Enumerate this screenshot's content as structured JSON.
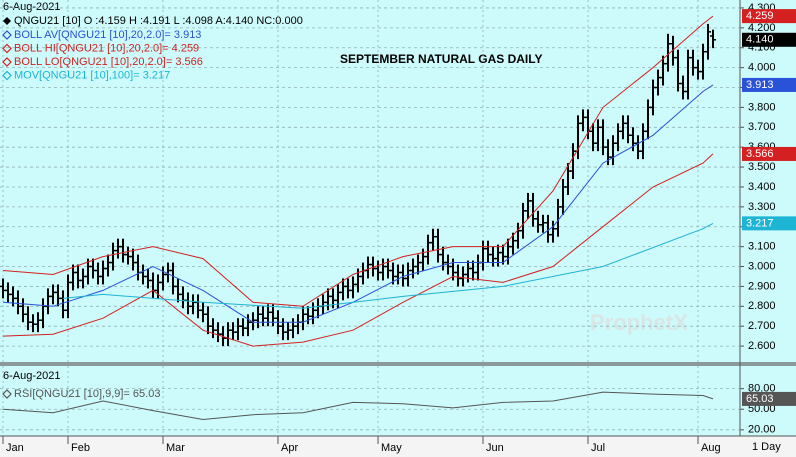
{
  "chart_data": [
    {
      "type": "ohlc",
      "header": "6-Aug-2021",
      "title": "SEPTEMBER NATURAL GAS DAILY",
      "watermark": "ProphetX",
      "interval": "1 Day",
      "ohlc_name": "QNGU21 [10] O :4.159 H :4.191 L :4.098 A:4.140 NC:0.000",
      "ohlc_color": "#000000",
      "ohlc_last_label": "4.140",
      "grid": true,
      "xlim": [
        -0.6,
        147.4
      ],
      "xticks": [
        {
          "value": 0,
          "label": "Jan"
        },
        {
          "value": 13,
          "label": "Feb"
        },
        {
          "value": 32,
          "label": "Mar"
        },
        {
          "value": 55,
          "label": "Apr"
        },
        {
          "value": 75,
          "label": "May"
        },
        {
          "value": 96,
          "label": "Jun"
        },
        {
          "value": 117,
          "label": "Jul"
        },
        {
          "value": 139,
          "label": "Aug"
        }
      ],
      "ylim": [
        2.52,
        4.34
      ],
      "yticks": [
        {
          "value": 2.6,
          "label": "2.600"
        },
        {
          "value": 2.7,
          "label": "2.700"
        },
        {
          "value": 2.8,
          "label": "2.800"
        },
        {
          "value": 2.9,
          "label": "2.900"
        },
        {
          "value": 3.0,
          "label": "3.000"
        },
        {
          "value": 3.1,
          "label": "3.100"
        },
        {
          "value": 3.2,
          "label": "3.200"
        },
        {
          "value": 3.3,
          "label": "3.300"
        },
        {
          "value": 3.4,
          "label": "3.400"
        },
        {
          "value": 3.5,
          "label": "3.500"
        },
        {
          "value": 3.6,
          "label": "3.600"
        },
        {
          "value": 3.7,
          "label": "3.700"
        },
        {
          "value": 3.8,
          "label": "3.800"
        },
        {
          "value": 3.9,
          "label": "3.900"
        },
        {
          "value": 4.0,
          "label": "4.000"
        },
        {
          "value": 4.1,
          "label": "4.100"
        },
        {
          "value": 4.2,
          "label": "4.200"
        },
        {
          "value": 4.3,
          "label": "4.300"
        }
      ],
      "ohlc": [
        [
          2.9,
          2.94,
          2.84,
          2.88
        ],
        [
          2.88,
          2.92,
          2.82,
          2.86
        ],
        [
          2.86,
          2.9,
          2.8,
          2.84
        ],
        [
          2.84,
          2.88,
          2.76,
          2.8
        ],
        [
          2.8,
          2.84,
          2.72,
          2.76
        ],
        [
          2.76,
          2.8,
          2.68,
          2.72
        ],
        [
          2.72,
          2.76,
          2.67,
          2.71
        ],
        [
          2.71,
          2.77,
          2.67,
          2.73
        ],
        [
          2.73,
          2.84,
          2.69,
          2.8
        ],
        [
          2.8,
          2.89,
          2.76,
          2.85
        ],
        [
          2.85,
          2.91,
          2.81,
          2.87
        ],
        [
          2.87,
          2.91,
          2.8,
          2.84
        ],
        [
          2.84,
          2.88,
          2.74,
          2.78
        ],
        [
          2.78,
          2.96,
          2.74,
          2.92
        ],
        [
          2.92,
          3.01,
          2.88,
          2.97
        ],
        [
          2.97,
          3.01,
          2.89,
          2.93
        ],
        [
          2.93,
          2.99,
          2.89,
          2.95
        ],
        [
          2.95,
          3.04,
          2.91,
          3.0
        ],
        [
          3.0,
          3.04,
          2.94,
          2.98
        ],
        [
          2.98,
          3.02,
          2.91,
          2.95
        ],
        [
          2.95,
          3.03,
          2.91,
          2.99
        ],
        [
          2.99,
          3.06,
          2.95,
          3.02
        ],
        [
          3.02,
          3.12,
          2.98,
          3.08
        ],
        [
          3.08,
          3.14,
          3.04,
          3.1
        ],
        [
          3.1,
          3.14,
          3.02,
          3.06
        ],
        [
          3.06,
          3.1,
          3.01,
          3.05
        ],
        [
          3.05,
          3.09,
          2.98,
          3.02
        ],
        [
          3.02,
          3.06,
          2.93,
          2.97
        ],
        [
          2.97,
          3.01,
          2.91,
          2.95
        ],
        [
          2.95,
          2.99,
          2.89,
          2.93
        ],
        [
          2.93,
          2.97,
          2.84,
          2.88
        ],
        [
          2.88,
          2.96,
          2.84,
          2.92
        ],
        [
          2.92,
          3.0,
          2.88,
          2.96
        ],
        [
          2.96,
          3.02,
          2.92,
          2.98
        ],
        [
          2.98,
          3.02,
          2.86,
          2.9
        ],
        [
          2.9,
          2.94,
          2.82,
          2.86
        ],
        [
          2.86,
          2.9,
          2.79,
          2.83
        ],
        [
          2.83,
          2.87,
          2.76,
          2.8
        ],
        [
          2.8,
          2.86,
          2.76,
          2.82
        ],
        [
          2.82,
          2.86,
          2.74,
          2.78
        ],
        [
          2.78,
          2.82,
          2.72,
          2.76
        ],
        [
          2.76,
          2.8,
          2.66,
          2.7
        ],
        [
          2.7,
          2.74,
          2.64,
          2.68
        ],
        [
          2.68,
          2.72,
          2.62,
          2.66
        ],
        [
          2.66,
          2.7,
          2.6,
          2.64
        ],
        [
          2.64,
          2.72,
          2.6,
          2.68
        ],
        [
          2.68,
          2.72,
          2.63,
          2.67
        ],
        [
          2.67,
          2.74,
          2.63,
          2.7
        ],
        [
          2.7,
          2.74,
          2.65,
          2.69
        ],
        [
          2.69,
          2.76,
          2.65,
          2.72
        ],
        [
          2.72,
          2.77,
          2.68,
          2.73
        ],
        [
          2.73,
          2.8,
          2.69,
          2.76
        ],
        [
          2.76,
          2.8,
          2.7,
          2.74
        ],
        [
          2.74,
          2.81,
          2.7,
          2.77
        ],
        [
          2.77,
          2.81,
          2.7,
          2.74
        ],
        [
          2.74,
          2.78,
          2.66,
          2.7
        ],
        [
          2.7,
          2.74,
          2.63,
          2.67
        ],
        [
          2.67,
          2.72,
          2.63,
          2.68
        ],
        [
          2.68,
          2.74,
          2.64,
          2.7
        ],
        [
          2.7,
          2.76,
          2.66,
          2.72
        ],
        [
          2.72,
          2.8,
          2.68,
          2.76
        ],
        [
          2.76,
          2.8,
          2.71,
          2.75
        ],
        [
          2.75,
          2.82,
          2.71,
          2.78
        ],
        [
          2.78,
          2.84,
          2.74,
          2.8
        ],
        [
          2.8,
          2.86,
          2.76,
          2.82
        ],
        [
          2.82,
          2.89,
          2.78,
          2.85
        ],
        [
          2.85,
          2.89,
          2.79,
          2.83
        ],
        [
          2.83,
          2.91,
          2.79,
          2.87
        ],
        [
          2.87,
          2.94,
          2.83,
          2.9
        ],
        [
          2.9,
          2.94,
          2.84,
          2.88
        ],
        [
          2.88,
          2.95,
          2.84,
          2.91
        ],
        [
          2.91,
          2.99,
          2.87,
          2.95
        ],
        [
          2.95,
          3.02,
          2.91,
          2.98
        ],
        [
          2.98,
          3.05,
          2.94,
          3.01
        ],
        [
          3.01,
          3.05,
          2.95,
          2.99
        ],
        [
          2.99,
          3.03,
          2.93,
          2.97
        ],
        [
          2.97,
          3.04,
          2.93,
          3.0
        ],
        [
          3.0,
          3.04,
          2.94,
          2.98
        ],
        [
          2.98,
          3.02,
          2.91,
          2.95
        ],
        [
          2.95,
          3.01,
          2.91,
          2.97
        ],
        [
          2.97,
          3.01,
          2.9,
          2.94
        ],
        [
          2.94,
          3.02,
          2.9,
          2.98
        ],
        [
          2.98,
          3.04,
          2.94,
          3.0
        ],
        [
          3.0,
          3.06,
          2.96,
          3.02
        ],
        [
          3.02,
          3.09,
          2.98,
          3.05
        ],
        [
          3.05,
          3.16,
          3.01,
          3.12
        ],
        [
          3.12,
          3.19,
          3.08,
          3.15
        ],
        [
          3.15,
          3.19,
          3.02,
          3.06
        ],
        [
          3.06,
          3.1,
          2.98,
          3.02
        ],
        [
          3.02,
          3.06,
          2.96,
          3.0
        ],
        [
          3.0,
          3.04,
          2.93,
          2.97
        ],
        [
          2.97,
          3.01,
          2.9,
          2.94
        ],
        [
          2.94,
          3.0,
          2.9,
          2.96
        ],
        [
          2.96,
          3.03,
          2.92,
          2.99
        ],
        [
          2.99,
          3.03,
          2.93,
          2.97
        ],
        [
          2.97,
          3.06,
          2.93,
          3.02
        ],
        [
          3.02,
          3.13,
          2.98,
          3.09
        ],
        [
          3.09,
          3.13,
          3.02,
          3.06
        ],
        [
          3.06,
          3.1,
          3.0,
          3.04
        ],
        [
          3.04,
          3.11,
          3.0,
          3.07
        ],
        [
          3.07,
          3.11,
          3.01,
          3.05
        ],
        [
          3.05,
          3.14,
          3.01,
          3.1
        ],
        [
          3.1,
          3.17,
          3.06,
          3.13
        ],
        [
          3.13,
          3.22,
          3.09,
          3.18
        ],
        [
          3.18,
          3.32,
          3.14,
          3.28
        ],
        [
          3.28,
          3.37,
          3.24,
          3.33
        ],
        [
          3.33,
          3.37,
          3.2,
          3.24
        ],
        [
          3.24,
          3.28,
          3.17,
          3.21
        ],
        [
          3.21,
          3.26,
          3.17,
          3.22
        ],
        [
          3.22,
          3.26,
          3.12,
          3.16
        ],
        [
          3.16,
          3.23,
          3.12,
          3.19
        ],
        [
          3.19,
          3.34,
          3.15,
          3.3
        ],
        [
          3.3,
          3.44,
          3.26,
          3.4
        ],
        [
          3.4,
          3.52,
          3.36,
          3.48
        ],
        [
          3.48,
          3.62,
          3.44,
          3.58
        ],
        [
          3.58,
          3.76,
          3.54,
          3.72
        ],
        [
          3.72,
          3.79,
          3.68,
          3.75
        ],
        [
          3.75,
          3.79,
          3.64,
          3.68
        ],
        [
          3.68,
          3.72,
          3.58,
          3.62
        ],
        [
          3.62,
          3.74,
          3.58,
          3.7
        ],
        [
          3.7,
          3.74,
          3.56,
          3.6
        ],
        [
          3.6,
          3.64,
          3.51,
          3.55
        ],
        [
          3.55,
          3.66,
          3.51,
          3.62
        ],
        [
          3.62,
          3.72,
          3.58,
          3.68
        ],
        [
          3.68,
          3.76,
          3.64,
          3.72
        ],
        [
          3.72,
          3.76,
          3.62,
          3.66
        ],
        [
          3.66,
          3.7,
          3.58,
          3.62
        ],
        [
          3.62,
          3.66,
          3.54,
          3.58
        ],
        [
          3.58,
          3.72,
          3.54,
          3.68
        ],
        [
          3.68,
          3.84,
          3.64,
          3.8
        ],
        [
          3.8,
          3.94,
          3.76,
          3.9
        ],
        [
          3.9,
          3.99,
          3.86,
          3.95
        ],
        [
          3.95,
          4.06,
          3.91,
          4.02
        ],
        [
          4.02,
          4.17,
          3.98,
          4.12
        ],
        [
          4.12,
          4.16,
          4.01,
          4.05
        ],
        [
          4.05,
          4.09,
          3.88,
          3.92
        ],
        [
          3.92,
          3.96,
          3.84,
          3.88
        ],
        [
          3.88,
          4.09,
          3.84,
          4.05
        ],
        [
          4.05,
          4.09,
          3.96,
          4.0
        ],
        [
          4.0,
          4.04,
          3.94,
          3.98
        ],
        [
          3.98,
          4.12,
          3.94,
          4.08
        ],
        [
          4.08,
          4.22,
          4.04,
          4.18
        ],
        [
          4.159,
          4.191,
          4.098,
          4.14
        ]
      ],
      "series": [
        {
          "name": "BOLL AV[QNGU21 [10],20,2.0]= 3.913",
          "color": "#2a52d8",
          "last_label": "3.913",
          "x": [
            0,
            10,
            20,
            30,
            40,
            50,
            60,
            70,
            80,
            90,
            100,
            110,
            120,
            130,
            140,
            142
          ],
          "values": [
            2.82,
            2.8,
            2.88,
            3.0,
            2.88,
            2.72,
            2.72,
            2.82,
            2.95,
            3.02,
            3.02,
            3.2,
            3.52,
            3.66,
            3.88,
            3.913
          ]
        },
        {
          "name": "BOLL HI[QNGU21 [10],20,2.0]= 4.259",
          "color": "#d42020",
          "last_label": "4.259",
          "x": [
            0,
            10,
            20,
            30,
            40,
            50,
            60,
            70,
            80,
            90,
            100,
            110,
            120,
            130,
            140,
            142
          ],
          "values": [
            2.98,
            2.96,
            3.05,
            3.1,
            3.04,
            2.82,
            2.8,
            2.96,
            3.05,
            3.1,
            3.1,
            3.38,
            3.8,
            4.0,
            4.22,
            4.259
          ]
        },
        {
          "name": "BOLL LO[QNGU21 [10],20,2.0]= 3.566",
          "color": "#d42020",
          "last_label": "3.566",
          "x": [
            0,
            10,
            20,
            30,
            40,
            50,
            60,
            70,
            80,
            90,
            100,
            110,
            120,
            130,
            140,
            142
          ],
          "values": [
            2.65,
            2.66,
            2.74,
            2.88,
            2.68,
            2.6,
            2.62,
            2.68,
            2.82,
            2.95,
            2.92,
            3.0,
            3.2,
            3.4,
            3.52,
            3.566
          ]
        },
        {
          "name": "MOV[QNGU21 [10],100]= 3.217",
          "color": "#1eb4d4",
          "last_label": "3.217",
          "x": [
            12,
            20,
            40,
            60,
            80,
            100,
            120,
            140,
            142
          ],
          "values": [
            2.84,
            2.86,
            2.82,
            2.79,
            2.85,
            2.9,
            3.0,
            3.19,
            3.217
          ]
        }
      ]
    },
    {
      "type": "line",
      "header": "6-Aug-2021",
      "xlim": [
        -0.6,
        147.4
      ],
      "ylim": [
        11,
        113
      ],
      "yticks": [
        {
          "value": 20,
          "label": "20.00"
        },
        {
          "value": 50,
          "label": "50.00"
        },
        {
          "value": 80,
          "label": "80.00"
        }
      ],
      "grid": true,
      "series": [
        {
          "name": "RSI[QNGU21 [10],9,9]= 65.03",
          "color": "#555555",
          "last_label": "65.03",
          "x": [
            0,
            10,
            20,
            30,
            40,
            50,
            60,
            70,
            80,
            90,
            100,
            110,
            120,
            130,
            140,
            142
          ],
          "values": [
            50,
            45,
            62,
            48,
            35,
            42,
            45,
            60,
            58,
            52,
            60,
            62,
            75,
            72,
            70,
            65.03
          ]
        }
      ]
    }
  ]
}
